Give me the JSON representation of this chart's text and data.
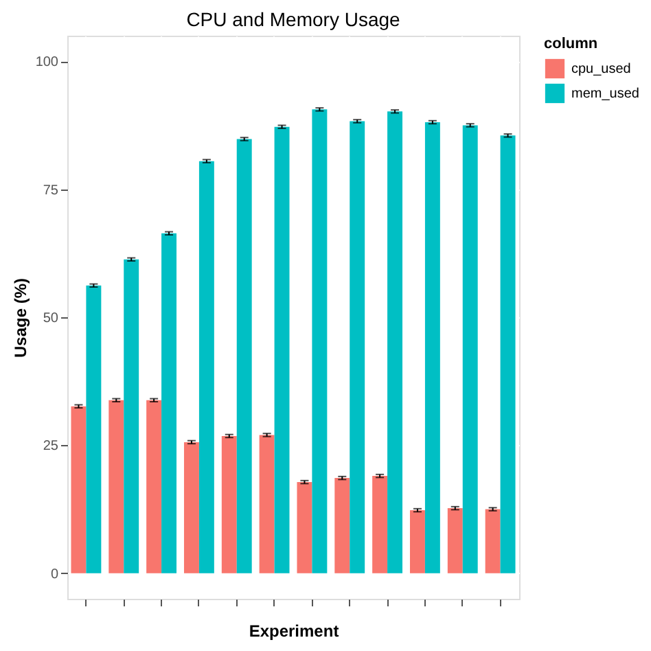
{
  "chart_data": {
    "type": "bar",
    "title": "CPU and Memory Usage",
    "xlabel": "Experiment",
    "ylabel": "Usage (%)",
    "legend_title": "column",
    "legend": "right",
    "categories": [
      null,
      null,
      null,
      null,
      null,
      null,
      null,
      null,
      null,
      null,
      null,
      null
    ],
    "series": [
      {
        "name": "cpu_used",
        "color": "#f8766d",
        "values": [
          32.6,
          33.8,
          33.8,
          25.6,
          26.8,
          27.0,
          17.8,
          18.6,
          19.0,
          12.3,
          12.7,
          12.5
        ],
        "errors": [
          0.3,
          0.3,
          0.3,
          0.3,
          0.3,
          0.3,
          0.3,
          0.3,
          0.3,
          0.3,
          0.3,
          0.3
        ]
      },
      {
        "name": "mem_used",
        "color": "#00bfc4",
        "values": [
          56.2,
          61.3,
          66.4,
          80.5,
          84.8,
          87.2,
          90.6,
          88.3,
          90.2,
          88.1,
          87.5,
          85.5
        ],
        "errors": [
          0.3,
          0.3,
          0.3,
          0.3,
          0.3,
          0.3,
          0.3,
          0.3,
          0.3,
          0.3,
          0.3,
          0.3
        ]
      }
    ],
    "ylim": [
      -5,
      105
    ],
    "yticks": [
      0,
      25,
      50,
      75,
      100
    ],
    "grid": true
  }
}
